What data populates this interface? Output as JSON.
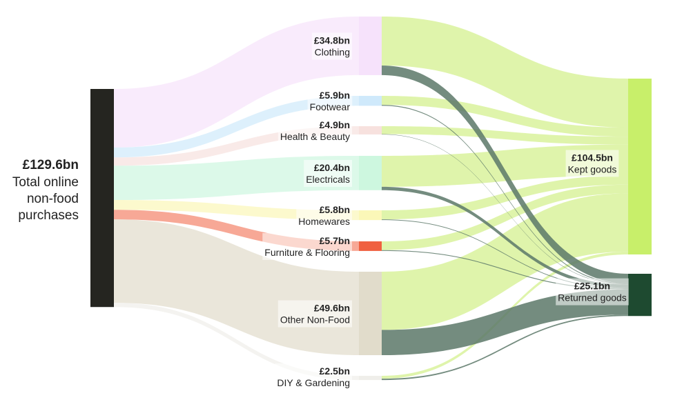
{
  "chart_data": {
    "type": "sankey",
    "unit": "£bn",
    "source": {
      "id": "total",
      "value_label": "£129.6bn",
      "name_lines": [
        "Total online",
        "non-food",
        "purchases"
      ],
      "value": 129.6,
      "color": "#252520"
    },
    "categories": [
      {
        "id": "clothing",
        "name": "Clothing",
        "value_label": "£34.8bn",
        "value": 34.8,
        "color": "#f6e2fb",
        "kept": 29.1,
        "returned": 5.7
      },
      {
        "id": "footwear",
        "name": "Footwear",
        "value_label": "£5.9bn",
        "value": 5.9,
        "color": "#cfe9fb",
        "kept": 5.4,
        "returned": 0.5
      },
      {
        "id": "health",
        "name": "Health & Beauty",
        "value_label": "£4.9bn",
        "value": 4.9,
        "color": "#f7e1de",
        "kept": 4.7,
        "returned": 0.2
      },
      {
        "id": "electricals",
        "name": "Electricals",
        "value_label": "£20.4bn",
        "value": 20.4,
        "color": "#cdf7df",
        "kept": 18.4,
        "returned": 2.0
      },
      {
        "id": "homewares",
        "name": "Homewares",
        "value_label": "£5.8bn",
        "value": 5.8,
        "color": "#fbf7b8",
        "kept": 5.4,
        "returned": 0.4
      },
      {
        "id": "furniture",
        "name": "Furniture & Flooring",
        "value_label": "£5.7bn",
        "value": 5.7,
        "color": "#f06040",
        "kept": 5.2,
        "returned": 0.5
      },
      {
        "id": "othernonfood",
        "name": "Other Non-Food",
        "value_label": "£49.6bn",
        "value": 49.6,
        "color": "#e1dccb",
        "kept": 34.6,
        "returned": 15.0
      },
      {
        "id": "diy",
        "name": "DIY & Gardening",
        "value_label": "£2.5bn",
        "value": 2.5,
        "color": "#efeeea",
        "kept": 1.7,
        "returned": 0.8
      }
    ],
    "outcomes": [
      {
        "id": "kept",
        "name": "Kept goods",
        "value_label": "£104.5bn",
        "value": 104.5,
        "color": "#c8ef6a",
        "link_color": "#d9f29c"
      },
      {
        "id": "returned",
        "name": "Returned goods",
        "value_label": "£25.1bn",
        "value": 25.1,
        "color": "#1e4a30",
        "link_color": "#5c7868"
      }
    ]
  }
}
